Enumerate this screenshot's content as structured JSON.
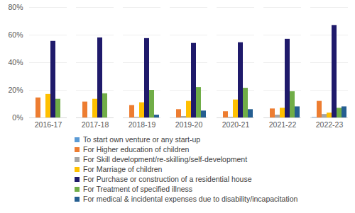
{
  "chart_data": {
    "type": "bar",
    "categories": [
      "2016-17",
      "2017-18",
      "2018-19",
      "2019-20",
      "2020-21",
      "2021-22",
      "2022-23"
    ],
    "series": [
      {
        "name": "To start own venture or any start-up",
        "color": "#5b9bd5",
        "values": [
          0,
          0,
          0,
          0,
          0,
          0,
          0.3
        ]
      },
      {
        "name": "For Higher education of children",
        "color": "#ed7d31",
        "values": [
          14.5,
          11.5,
          9,
          6,
          4.5,
          6.5,
          12
        ]
      },
      {
        "name": "For Skill development/re-skilling/self-development",
        "color": "#a5a5a5",
        "values": [
          0,
          0,
          0.5,
          1,
          0.5,
          2,
          2.5
        ]
      },
      {
        "name": "For Marriage of children",
        "color": "#ffc000",
        "values": [
          17,
          13.5,
          11,
          12,
          13,
          7,
          3.5
        ]
      },
      {
        "name": "For Purchase or construction of a residential house",
        "color": "#1f1a6b",
        "values": [
          55.5,
          58,
          57.5,
          54,
          54.5,
          57,
          67
        ]
      },
      {
        "name": "For Treatment of specified illness",
        "color": "#70ad47",
        "values": [
          13.5,
          17.5,
          20,
          22,
          21.5,
          19,
          7
        ]
      },
      {
        "name": "For medical & incidental expenses due to disability/incapacitation",
        "color": "#255e91",
        "values": [
          0,
          0,
          2,
          5,
          6,
          8,
          8
        ]
      }
    ],
    "ylim": [
      0,
      80
    ],
    "yticks": [
      {
        "value": 0,
        "label": "0%"
      },
      {
        "value": 20,
        "label": "20%"
      },
      {
        "value": 40,
        "label": "40%"
      },
      {
        "value": 60,
        "label": "60%"
      },
      {
        "value": 80,
        "label": "80%"
      }
    ],
    "grid": true,
    "legend": "bottom"
  }
}
